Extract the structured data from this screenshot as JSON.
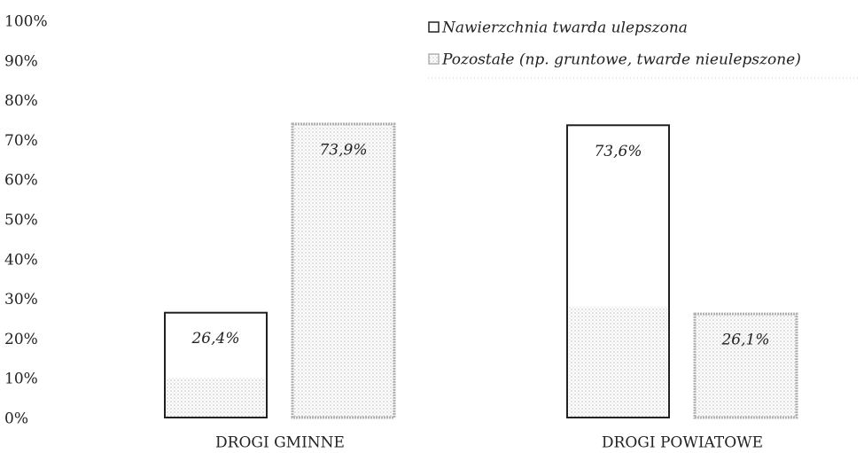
{
  "chart_data": {
    "type": "bar",
    "categories": [
      "DROGI GMINNE",
      "DROGI POWIATOWE"
    ],
    "series": [
      {
        "name": "Nawierzchnia twarda ulepszona",
        "color": "#222222",
        "values": [
          26.4,
          73.6
        ],
        "value_labels": [
          "26,4%",
          "73,6%"
        ]
      },
      {
        "name": "Pozostałe (np. gruntowe, twarde nieulepszone)",
        "color": "#b0b0b0",
        "values": [
          73.9,
          26.1
        ],
        "value_labels": [
          "73,9%",
          "26,1%"
        ]
      }
    ],
    "ylim": [
      0,
      100
    ],
    "yticks": [
      {
        "value": 0,
        "label": "0%"
      },
      {
        "value": 10,
        "label": "10%"
      },
      {
        "value": 20,
        "label": "20%"
      },
      {
        "value": 30,
        "label": "30%"
      },
      {
        "value": 40,
        "label": "40%"
      },
      {
        "value": 50,
        "label": "50%"
      },
      {
        "value": 60,
        "label": "60%"
      },
      {
        "value": 70,
        "label": "70%"
      },
      {
        "value": 80,
        "label": "80%"
      },
      {
        "value": 90,
        "label": "90%"
      },
      {
        "value": 100,
        "label": "100%"
      }
    ],
    "grid": false,
    "legend": "top-right"
  }
}
